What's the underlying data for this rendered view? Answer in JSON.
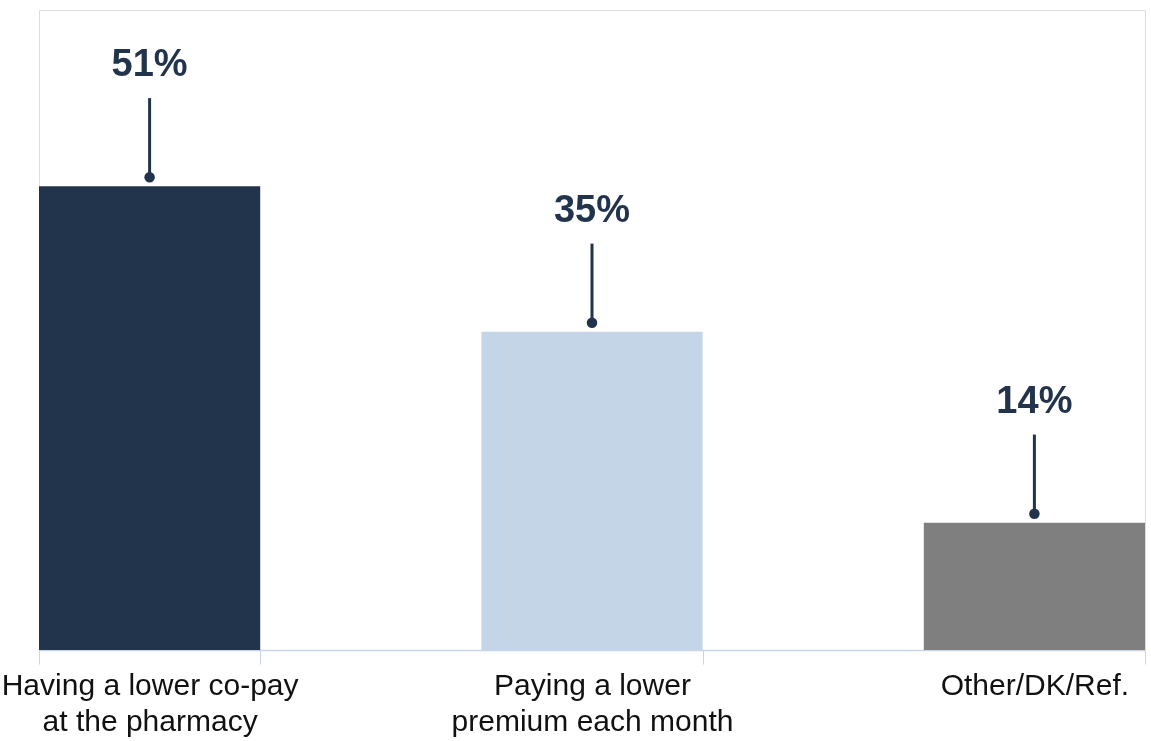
{
  "chart_data": {
    "type": "bar",
    "categories": [
      "Having a lower co-pay at the pharmacy",
      "Paying a lower premium each month",
      "Other/DK/Ref."
    ],
    "values": [
      51,
      35,
      14
    ],
    "colors": [
      "#22334c",
      "#c5d5e8",
      "#7f7f7f"
    ],
    "value_labels": [
      "51%",
      "35%",
      "14%"
    ],
    "grid": false
  }
}
